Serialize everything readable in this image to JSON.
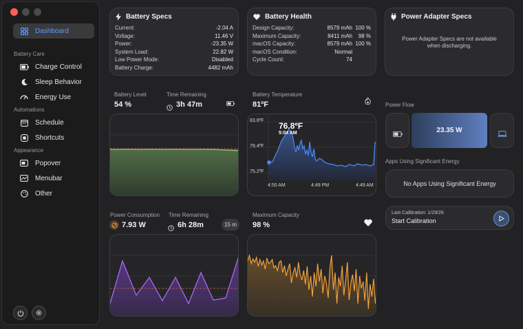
{
  "sidebar": {
    "dashboard": "Dashboard",
    "sections": {
      "battery_care": "Battery Care",
      "automations": "Automations",
      "appearance": "Appearance"
    },
    "items": {
      "charge_control": "Charge Control",
      "sleep_behavior": "Sleep Behavior",
      "energy_use": "Energy Use",
      "schedule": "Schedule",
      "shortcuts": "Shortcuts",
      "popover": "Popover",
      "menubar": "Menubar",
      "other": "Other"
    }
  },
  "battery_specs": {
    "title": "Battery Specs",
    "rows": [
      {
        "k": "Current:",
        "v": "-2.04 A"
      },
      {
        "k": "Voltage:",
        "v": "11.46 V"
      },
      {
        "k": "Power:",
        "v": "-23.35 W"
      },
      {
        "k": "System Load:",
        "v": "22.82 W"
      },
      {
        "k": "Low Power Mode:",
        "v": "Disabled"
      },
      {
        "k": "Battery Charge:",
        "v": "4482 mAh"
      }
    ]
  },
  "battery_health": {
    "title": "Battery Health",
    "rows": [
      {
        "k": "Design Capacity:",
        "v": "8579 mAh",
        "p": "100 %"
      },
      {
        "k": "Maximum Capacity:",
        "v": "8411 mAh",
        "p": "98 %"
      },
      {
        "k": "macOS Capacity:",
        "v": "8579 mAh",
        "p": "100 %"
      },
      {
        "k": "macOS Condition:",
        "v": "Normal",
        "p": ""
      },
      {
        "k": "Cycle Count:",
        "v": "74",
        "p": ""
      }
    ]
  },
  "power_adapter": {
    "title": "Power Adapter Specs",
    "message": "Power Adapter Specs are not available when discharging."
  },
  "battery_level": {
    "label": "Battery Level",
    "value": "54 %",
    "time_label": "Time Remaining",
    "time_value": "3h 47m",
    "level_fraction": 0.54
  },
  "battery_temp": {
    "label": "Battery Temperature",
    "value": "81ºF",
    "tooltip_value": "76.8ºF",
    "tooltip_time": "5:04 AM",
    "y_ticks": [
      "83.6ºF",
      "79.4ºF",
      "75.2ºF"
    ],
    "x_ticks": [
      "4:50 AM",
      "4:49 PM",
      "4:49 AM"
    ]
  },
  "power_flow": {
    "label": "Power Flow",
    "value": "23.35 W"
  },
  "apps_energy": {
    "label": "Apps Using Significant Energy",
    "message": "No Apps Using Significant Energy"
  },
  "calibration": {
    "last": "Last Calibration: 1/29/26",
    "action": "Start Calibration"
  },
  "power_consumption": {
    "label": "Power Consumption",
    "value": "7.93 W",
    "time_label": "Time Remaining",
    "time_value": "6h 28m",
    "interval": "15 m"
  },
  "max_capacity": {
    "label": "Maximum Capacity",
    "value": "98 %"
  },
  "colors": {
    "accent_blue": "#5b9dff",
    "green_fill": "#3f5a3c",
    "purple": "#a066e8",
    "orange": "#f2a03c",
    "temp_line": "#4a86f0"
  }
}
